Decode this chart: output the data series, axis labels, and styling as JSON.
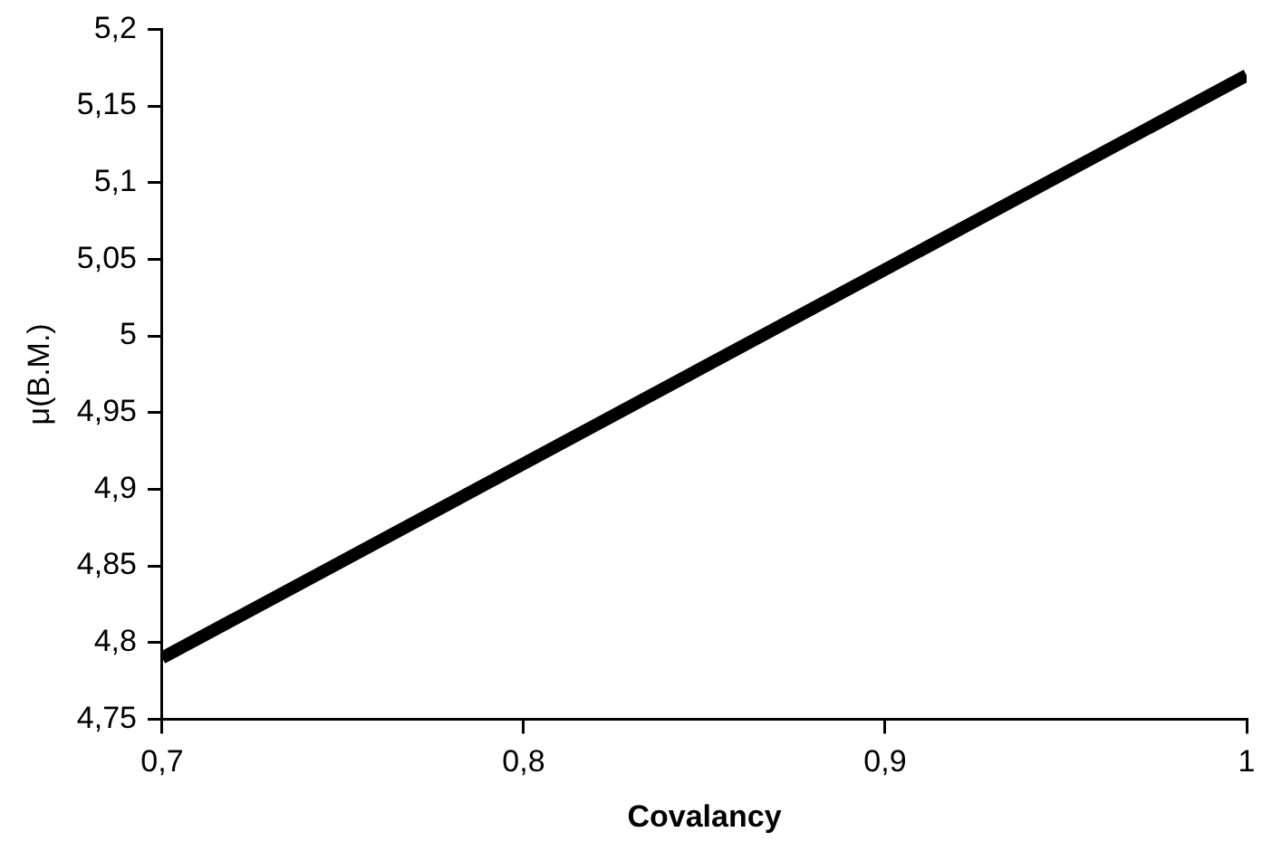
{
  "chart_data": {
    "type": "line",
    "xlabel": "Covalancy",
    "ylabel": "μ(B.M.)",
    "x": [
      0.7,
      1
    ],
    "series": [
      {
        "color": "#000000",
        "values": [
          4.79,
          5.17
        ]
      }
    ],
    "xlim": [
      0.7,
      1
    ],
    "xticks": [
      {
        "value": 0.7,
        "label": "0,7"
      },
      {
        "value": 0.8,
        "label": "0,8"
      },
      {
        "value": 0.9,
        "label": "0,9"
      },
      {
        "value": 1,
        "label": "1"
      }
    ],
    "ylim": [
      4.75,
      5.2
    ],
    "yticks": [
      {
        "value": 4.75,
        "label": "4,75"
      },
      {
        "value": 4.8,
        "label": "4,8"
      },
      {
        "value": 4.85,
        "label": "4,85"
      },
      {
        "value": 4.9,
        "label": "4,9"
      },
      {
        "value": 4.95,
        "label": "4,95"
      },
      {
        "value": 5,
        "label": "5"
      },
      {
        "value": 5.05,
        "label": "5,05"
      },
      {
        "value": 5.1,
        "label": "5,1"
      },
      {
        "value": 5.15,
        "label": "5,15"
      },
      {
        "value": 5.2,
        "label": "5,2"
      }
    ],
    "grid": false,
    "legend": false,
    "marker": "none",
    "line_style": "solid"
  }
}
